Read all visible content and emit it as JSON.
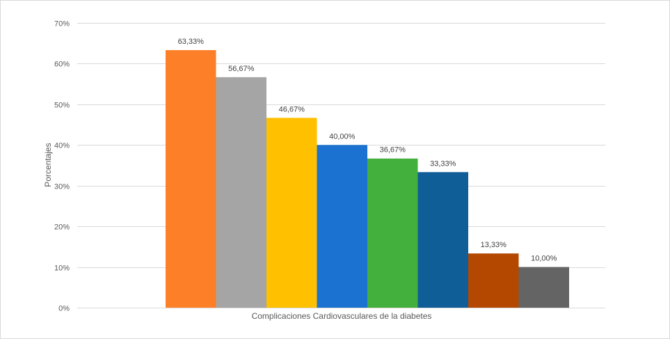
{
  "chart_data": {
    "type": "bar",
    "title": "",
    "xlabel": "Complicaciones Cardiovasculares de la diabetes",
    "ylabel": "Porcentajes",
    "categories": [
      "Complicaciones Cardiovasculares de la diabetes"
    ],
    "ylim": [
      0,
      70
    ],
    "yticks": [
      0,
      10,
      20,
      30,
      40,
      50,
      60,
      70
    ],
    "ytick_labels": [
      "0%",
      "10%",
      "20%",
      "30%",
      "40%",
      "50%",
      "60%",
      "70%"
    ],
    "grid": true,
    "legend": "none",
    "series": [
      {
        "value": 63.33,
        "label": "63,33%",
        "color": "#FD7F28"
      },
      {
        "value": 56.67,
        "label": "56,67%",
        "color": "#A5A5A5"
      },
      {
        "value": 46.67,
        "label": "46,67%",
        "color": "#FFC000"
      },
      {
        "value": 40.0,
        "label": "40,00%",
        "color": "#1B72D0"
      },
      {
        "value": 36.67,
        "label": "36,67%",
        "color": "#43B03E"
      },
      {
        "value": 33.33,
        "label": "33,33%",
        "color": "#0F5E97"
      },
      {
        "value": 13.33,
        "label": "13,33%",
        "color": "#B54800"
      },
      {
        "value": 10.0,
        "label": "10,00%",
        "color": "#646464"
      }
    ]
  }
}
